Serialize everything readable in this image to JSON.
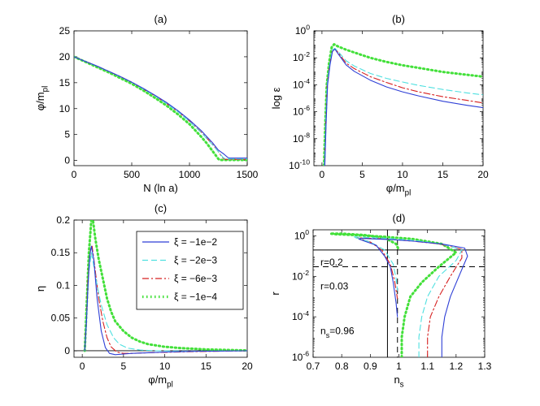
{
  "chart_data": [
    {
      "id": "a",
      "type": "line",
      "title": "(a)",
      "xlabel": "N (ln a)",
      "ylabel": "φ/m_pl",
      "xlim": [
        0,
        1500
      ],
      "ylim": [
        -1,
        25
      ],
      "xticks": [
        0,
        500,
        1000,
        1500
      ],
      "xtick_labels": [
        "0",
        "500",
        "1000",
        "1500"
      ],
      "yticks": [
        0,
        5,
        10,
        15,
        20,
        25
      ],
      "ytick_labels": [
        "0",
        "5",
        "10",
        "15",
        "20",
        "25"
      ],
      "series": [
        {
          "name": "ξ = −1e−2",
          "color": "#2e3fd6",
          "style": "solid",
          "x": [
            0,
            100,
            200,
            300,
            400,
            500,
            600,
            700,
            800,
            900,
            1000,
            1100,
            1200,
            1250,
            1300,
            1330,
            1345,
            1400,
            1500
          ],
          "y": [
            20,
            19.1,
            18.2,
            17.2,
            16.2,
            15.1,
            13.9,
            12.6,
            11.2,
            9.6,
            7.8,
            5.8,
            3.4,
            2.0,
            1.2,
            0.6,
            0.45,
            0.45,
            0.45
          ]
        },
        {
          "name": "ξ = −2e−3",
          "color": "#4fe0e0",
          "style": "dashed",
          "x": [
            0,
            100,
            200,
            300,
            400,
            500,
            600,
            700,
            800,
            900,
            1000,
            1100,
            1200,
            1250,
            1290,
            1310,
            1320,
            1400,
            1500
          ],
          "y": [
            20,
            19.1,
            18.2,
            17.2,
            16.2,
            15.1,
            13.8,
            12.5,
            11.0,
            9.4,
            7.5,
            5.4,
            3.0,
            1.7,
            0.6,
            0.3,
            0.3,
            0.3,
            0.3
          ]
        },
        {
          "name": "ξ = −6e−3",
          "color": "#d62020",
          "style": "dashdot",
          "x": [
            0,
            100,
            200,
            300,
            400,
            500,
            600,
            700,
            800,
            900,
            1000,
            1100,
            1200,
            1250,
            1280,
            1300,
            1310,
            1400,
            1500
          ],
          "y": [
            20,
            19.1,
            18.2,
            17.2,
            16.2,
            15.1,
            13.8,
            12.5,
            11.0,
            9.4,
            7.6,
            5.5,
            3.1,
            1.7,
            0.7,
            0.3,
            0.2,
            0.2,
            0.2
          ]
        },
        {
          "name": "ξ = −1e−4",
          "color": "#43e03a",
          "style": "dotted",
          "x": [
            0,
            100,
            200,
            300,
            400,
            500,
            600,
            700,
            800,
            900,
            1000,
            1100,
            1150,
            1200,
            1230,
            1250,
            1260,
            1400,
            1500
          ],
          "y": [
            20,
            19.0,
            18.0,
            17.0,
            15.9,
            14.8,
            13.5,
            12.1,
            10.6,
            8.9,
            7.0,
            4.6,
            3.3,
            1.8,
            0.9,
            0.3,
            0.1,
            0.1,
            0.1
          ]
        }
      ]
    },
    {
      "id": "b",
      "type": "line",
      "title": "(b)",
      "xlabel": "φ/m_pl",
      "ylabel": "log ε",
      "xscale": "linear",
      "yscale": "log",
      "xlim": [
        -1,
        20
      ],
      "ylim": [
        1e-10,
        1
      ],
      "xticks": [
        0,
        5,
        10,
        15,
        20
      ],
      "xtick_labels": [
        "0",
        "5",
        "10",
        "15",
        "20"
      ],
      "yticks": [
        1e-10,
        1e-08,
        1e-06,
        0.0001,
        0.01,
        1
      ],
      "ytick_labels": [
        "10^-10",
        "10^-8",
        "10^-6",
        "10^-4",
        "10^-2",
        "10^0"
      ],
      "series": [
        {
          "name": "ξ = −1e−2",
          "color": "#2e3fd6",
          "style": "solid",
          "x": [
            0.35,
            0.5,
            0.7,
            1.0,
            1.3,
            1.6,
            2,
            3,
            4,
            6,
            8,
            10,
            12,
            15,
            18,
            20
          ],
          "y": [
            1e-10,
            1e-07,
            0.0001,
            0.003,
            0.03,
            0.045,
            0.02,
            0.003,
            0.001,
            0.00022,
            7e-05,
            3e-05,
            1.5e-05,
            6e-06,
            3e-06,
            2e-06
          ]
        },
        {
          "name": "ξ = −2e−3",
          "color": "#4fe0e0",
          "style": "dashed",
          "x": [
            0.3,
            0.45,
            0.65,
            0.95,
            1.3,
            1.6,
            2,
            3,
            4,
            6,
            8,
            10,
            12,
            15,
            18,
            20
          ],
          "y": [
            1e-10,
            1e-07,
            0.0001,
            0.003,
            0.04,
            0.05,
            0.03,
            0.006,
            0.0025,
            0.0007,
            0.0003,
            0.00016,
            9e-05,
            4.5e-05,
            2.5e-05,
            1.8e-05
          ]
        },
        {
          "name": "ξ = −6e−3",
          "color": "#d62020",
          "style": "dashdot",
          "x": [
            0.3,
            0.45,
            0.65,
            0.95,
            1.3,
            1.6,
            2,
            3,
            4,
            6,
            8,
            10,
            12,
            15,
            18,
            20
          ],
          "y": [
            1e-10,
            1e-07,
            0.0001,
            0.003,
            0.035,
            0.05,
            0.025,
            0.004,
            0.0016,
            0.0004,
            0.00015,
            6e-05,
            3e-05,
            1.3e-05,
            7e-06,
            4.5e-06
          ]
        },
        {
          "name": "ξ = −1e−4",
          "color": "#43e03a",
          "style": "dotted",
          "x": [
            0.25,
            0.4,
            0.6,
            0.9,
            1.2,
            1.5,
            2,
            3,
            4,
            6,
            8,
            10,
            12,
            15,
            18,
            20
          ],
          "y": [
            1e-10,
            1e-07,
            0.0001,
            0.005,
            0.06,
            0.1,
            0.07,
            0.04,
            0.025,
            0.01,
            0.005,
            0.0028,
            0.0018,
            0.0009,
            0.00055,
            0.0004
          ]
        }
      ]
    },
    {
      "id": "c",
      "type": "line",
      "title": "(c)",
      "xlabel": "φ/m_pl",
      "ylabel": "η",
      "xlim": [
        -1,
        20
      ],
      "ylim": [
        -0.01,
        0.2
      ],
      "xticks": [
        0,
        5,
        10,
        15,
        20
      ],
      "xtick_labels": [
        "0",
        "5",
        "10",
        "15",
        "20"
      ],
      "yticks": [
        0,
        0.05,
        0.1,
        0.15,
        0.2
      ],
      "ytick_labels": [
        "0",
        "0.05",
        "0.1",
        "0.15",
        "0.2"
      ],
      "legend": "top-right",
      "hline": 0,
      "series": [
        {
          "name": "ξ = −1e−2",
          "color": "#2e3fd6",
          "style": "solid",
          "x": [
            0.3,
            0.5,
            0.7,
            0.9,
            1.1,
            1.4,
            1.8,
            2.3,
            2.8,
            3.3,
            4,
            5,
            6,
            8,
            10,
            13,
            16,
            20
          ],
          "y": [
            0,
            0.04,
            0.1,
            0.145,
            0.16,
            0.14,
            0.08,
            0.03,
            0.005,
            -0.004,
            -0.006,
            -0.005,
            -0.004,
            -0.003,
            -0.002,
            -0.001,
            -0.0005,
            0
          ]
        },
        {
          "name": "ξ = −2e−3",
          "color": "#4fe0e0",
          "style": "dashed",
          "x": [
            0.3,
            0.5,
            0.8,
            1.1,
            1.4,
            1.8,
            2.3,
            3,
            3.8,
            4.5,
            5.5,
            7,
            9,
            12,
            16,
            20
          ],
          "y": [
            0,
            0.05,
            0.12,
            0.15,
            0.13,
            0.1,
            0.07,
            0.04,
            0.02,
            0.01,
            0.004,
            0.001,
            0,
            -0.0005,
            -0.0005,
            0
          ]
        },
        {
          "name": "ξ = −6e−3",
          "color": "#d62020",
          "style": "dashdot",
          "x": [
            0.3,
            0.5,
            0.7,
            1.0,
            1.2,
            1.5,
            2,
            2.5,
            3,
            3.5,
            4.2,
            5,
            6,
            8,
            11,
            15,
            20
          ],
          "y": [
            0,
            0.05,
            0.11,
            0.155,
            0.16,
            0.13,
            0.08,
            0.045,
            0.02,
            0.006,
            -0.002,
            -0.004,
            -0.004,
            -0.003,
            -0.002,
            -0.001,
            0
          ]
        },
        {
          "name": "ξ = −1e−4",
          "color": "#43e03a",
          "style": "dotted",
          "x": [
            0.3,
            0.5,
            0.8,
            1.1,
            1.3,
            1.6,
            2,
            2.5,
            3,
            3.5,
            4,
            5,
            6,
            7,
            8,
            10,
            12,
            15,
            18,
            20
          ],
          "y": [
            0,
            0.06,
            0.15,
            0.2,
            0.2,
            0.17,
            0.14,
            0.11,
            0.08,
            0.06,
            0.045,
            0.03,
            0.02,
            0.014,
            0.01,
            0.006,
            0.004,
            0.002,
            0.001,
            0.0005
          ]
        }
      ]
    },
    {
      "id": "d",
      "type": "line",
      "title": "(d)",
      "xlabel": "n_s",
      "ylabel": "r",
      "xscale": "linear",
      "yscale": "log",
      "xlim": [
        0.7,
        1.3
      ],
      "ylim": [
        1e-06,
        2
      ],
      "xticks": [
        0.7,
        0.8,
        0.9,
        1.0,
        1.1,
        1.2,
        1.3
      ],
      "xtick_labels": [
        "0.7",
        "0.8",
        "0.9",
        "1",
        "1.1",
        "1.2",
        "1.3"
      ],
      "yticks": [
        1e-06,
        0.0001,
        0.01,
        1
      ],
      "ytick_labels": [
        "10^-6",
        "10^-4",
        "10^-2",
        "10^0"
      ],
      "reference_lines": [
        {
          "orientation": "horizontal",
          "value": 0.2,
          "style": "solid",
          "label": "r=0.2"
        },
        {
          "orientation": "horizontal",
          "value": 0.03,
          "style": "dashed",
          "label": "r=0.03"
        },
        {
          "orientation": "vertical",
          "value": 0.96,
          "style": "solid",
          "label": "n_s=0.96"
        },
        {
          "orientation": "vertical",
          "value": 0.995,
          "style": "dashed",
          "label": ""
        }
      ],
      "annotations": [
        "r=0.2",
        "r=0.03",
        "n_s=0.96"
      ],
      "series": [
        {
          "name": "ξ = −1e−2",
          "color": "#2e3fd6",
          "style": "solid",
          "x": [
            1.15,
            1.15,
            1.16,
            1.18,
            1.21,
            1.24,
            1.23,
            1.15,
            1.05,
            0.98,
            0.9,
            0.87,
            0.86,
            0.88,
            0.92,
            0.95,
            0.97,
            0.98,
            0.99,
            0.995
          ],
          "y": [
            1e-06,
            1e-05,
            0.0001,
            0.001,
            0.01,
            0.1,
            0.25,
            0.4,
            0.55,
            0.65,
            0.72,
            0.75,
            0.7,
            0.55,
            0.35,
            0.1,
            0.03,
            0.005,
            0.0005,
            0.0001
          ]
        },
        {
          "name": "ξ = −2e−3",
          "color": "#4fe0e0",
          "style": "dashed",
          "x": [
            1.07,
            1.07,
            1.08,
            1.1,
            1.14,
            1.2,
            1.22,
            1.15,
            1.05,
            0.96,
            0.88,
            0.84,
            0.85,
            0.9,
            0.95,
            0.98,
            0.99,
            0.995
          ],
          "y": [
            1e-06,
            1e-05,
            0.0001,
            0.001,
            0.01,
            0.06,
            0.2,
            0.4,
            0.6,
            0.75,
            0.85,
            0.9,
            0.8,
            0.5,
            0.2,
            0.04,
            0.008,
            0.002
          ]
        },
        {
          "name": "ξ = −6e−3",
          "color": "#d62020",
          "style": "dashdot",
          "x": [
            1.1,
            1.1,
            1.11,
            1.14,
            1.18,
            1.22,
            1.22,
            1.14,
            1.05,
            0.97,
            0.89,
            0.85,
            0.86,
            0.9,
            0.94,
            0.97,
            0.985,
            0.995
          ],
          "y": [
            1e-06,
            1e-05,
            0.0001,
            0.001,
            0.01,
            0.08,
            0.22,
            0.4,
            0.55,
            0.68,
            0.78,
            0.8,
            0.75,
            0.5,
            0.2,
            0.04,
            0.006,
            0.0008
          ]
        },
        {
          "name": "ξ = −1e−4",
          "color": "#43e03a",
          "style": "dotted",
          "x": [
            1.01,
            1.01,
            1.02,
            1.04,
            1.08,
            1.14,
            1.2,
            1.15,
            1.05,
            0.95,
            0.85,
            0.78,
            0.76,
            0.8,
            0.88,
            0.95,
            0.99,
            1.0
          ],
          "y": [
            1e-06,
            1e-05,
            0.0001,
            0.001,
            0.005,
            0.03,
            0.15,
            0.4,
            0.7,
            0.9,
            1.1,
            1.2,
            1.3,
            1.3,
            1.1,
            0.8,
            0.4,
            0.2
          ]
        }
      ]
    }
  ]
}
